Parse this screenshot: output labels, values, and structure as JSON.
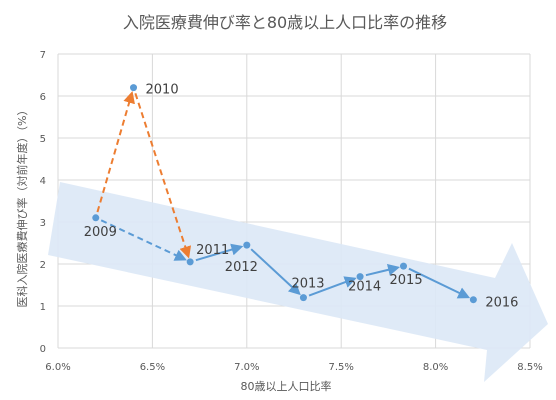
{
  "chart_data": {
    "type": "scatter",
    "title": "入院医療費伸び率と80歳以上人口比率の推移",
    "xlabel": "80歳以上人口比率",
    "ylabel": "医科入院医療費伸び率（対前年度）（%）",
    "xlim": [
      6.0,
      8.5
    ],
    "ylim": [
      0,
      7
    ],
    "x_tick_labels": [
      "6.0%",
      "6.5%",
      "7.0%",
      "7.5%",
      "8.0%",
      "8.5%"
    ],
    "y_tick_labels": [
      "0",
      "1",
      "2",
      "3",
      "4",
      "5",
      "6",
      "7"
    ],
    "grid": true,
    "points": [
      {
        "year": "2009",
        "x": 6.2,
        "y": 3.1
      },
      {
        "year": "2010",
        "x": 6.4,
        "y": 6.2
      },
      {
        "year": "2011",
        "x": 6.7,
        "y": 2.05
      },
      {
        "year": "2012",
        "x": 7.0,
        "y": 2.45
      },
      {
        "year": "2013",
        "x": 7.3,
        "y": 1.2
      },
      {
        "year": "2014",
        "x": 7.6,
        "y": 1.7
      },
      {
        "year": "2015",
        "x": 7.83,
        "y": 1.95
      },
      {
        "year": "2016",
        "x": 8.2,
        "y": 1.15
      }
    ],
    "colors": {
      "points": "#5b9bd5",
      "trend_arrows": "#5b9bd5",
      "spike_arrows": "#ed7d31",
      "band": "#dbe8f6",
      "grid": "#d9d9d9"
    }
  }
}
